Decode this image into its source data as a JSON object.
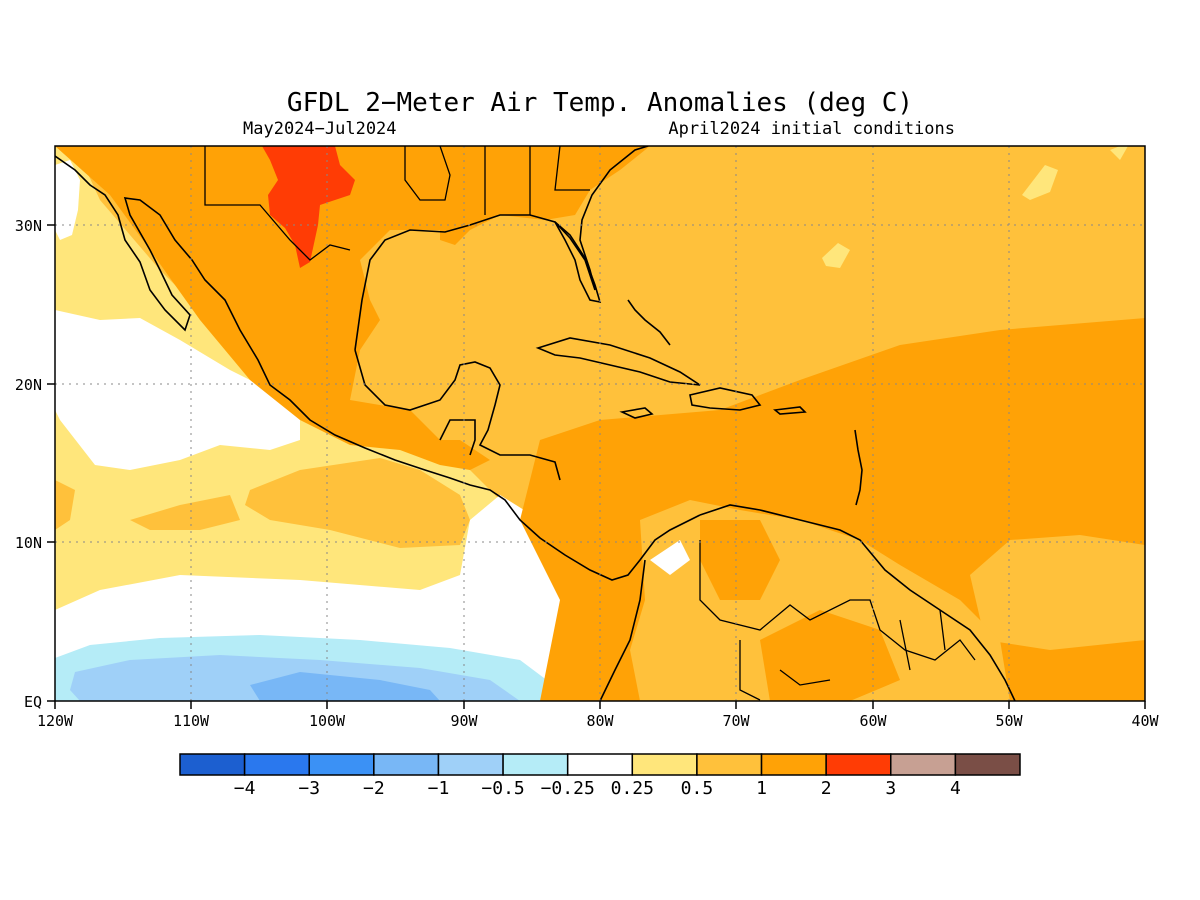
{
  "title": "GFDL 2−Meter Air Temp. Anomalies (deg C)",
  "subtitle_left": "May2024−Jul2024",
  "subtitle_right": "April2024 initial conditions",
  "map": {
    "lon_range": [
      -120,
      -40
    ],
    "lat_range": [
      0,
      35
    ],
    "x_ticks": [
      "120W",
      "110W",
      "100W",
      "90W",
      "80W",
      "70W",
      "60W",
      "50W",
      "40W"
    ],
    "y_ticks": [
      "EQ",
      "10N",
      "20N",
      "30N"
    ],
    "gridlines": "dotted"
  },
  "colorbar": {
    "colors": [
      "#1c5fd0",
      "#2a78ee",
      "#3b91f5",
      "#78b7f6",
      "#9fd0f8",
      "#b5ecf7",
      "#ffffff",
      "#ffe67b",
      "#ffc13b",
      "#ffa206",
      "#ff3c05",
      "#c7a093",
      "#7a4e46"
    ],
    "labels": [
      "−4",
      "−3",
      "−2",
      "−1",
      "−0.5",
      "−0.25",
      "0.25",
      "0.5",
      "1",
      "2",
      "3",
      "4"
    ]
  },
  "legend_colors": {
    "ocean_base": "#ffc13b",
    "anomaly_1_2": "#ffa206",
    "anomaly_2_3": "#ff3c05",
    "anomaly_0_5_1": "#ffc13b",
    "anomaly_0_25_0_5": "#ffe67b",
    "neutral": "#ffffff",
    "cool_light": "#b5ecf7",
    "cool_medium": "#9fd0f8",
    "cool_strong": "#78b7f6"
  }
}
